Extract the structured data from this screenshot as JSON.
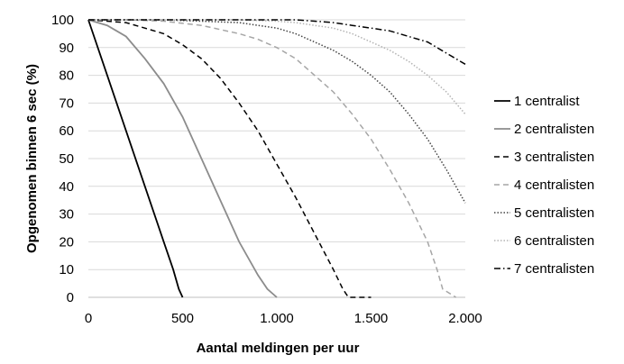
{
  "chart_data": {
    "type": "line",
    "title": "",
    "xlabel": "Aantal meldingen per uur",
    "ylabel": "Opgenomen binnen 6 sec (%)",
    "xlim": [
      0,
      2000
    ],
    "ylim": [
      0,
      100
    ],
    "x_ticks": [
      0,
      500,
      1000,
      1500,
      2000
    ],
    "x_tick_labels": [
      "0",
      "500",
      "1.000",
      "1.500",
      "2.000"
    ],
    "y_ticks": [
      0,
      10,
      20,
      30,
      40,
      50,
      60,
      70,
      80,
      90,
      100
    ],
    "y_tick_labels": [
      "0",
      "10",
      "20",
      "30",
      "40",
      "50",
      "60",
      "70",
      "80",
      "90",
      "100"
    ],
    "grid": "horizontal",
    "legend_position": "right",
    "series": [
      {
        "name": "1 centralist",
        "color": "#000000",
        "dash": "solid",
        "x": [
          0,
          100,
          200,
          300,
          400,
          450,
          480,
          500
        ],
        "y": [
          100,
          80,
          60,
          40,
          20,
          10,
          3,
          0
        ]
      },
      {
        "name": "2 centralisten",
        "color": "#8c8c8c",
        "dash": "solid",
        "x": [
          0,
          100,
          200,
          300,
          400,
          500,
          600,
          700,
          800,
          900,
          950,
          1000
        ],
        "y": [
          100,
          98,
          94,
          86,
          77,
          65,
          50,
          35,
          20,
          8,
          3,
          0
        ]
      },
      {
        "name": "3 centralisten",
        "color": "#000000",
        "dash": "dashed",
        "x": [
          0,
          100,
          200,
          300,
          400,
          500,
          600,
          700,
          800,
          900,
          1000,
          1100,
          1200,
          1300,
          1350,
          1380,
          1400,
          1500
        ],
        "y": [
          100,
          99.5,
          99,
          97,
          95,
          91,
          86,
          79,
          70,
          60,
          48,
          36,
          23,
          10,
          3,
          0,
          0,
          0
        ]
      },
      {
        "name": "4 centralisten",
        "color": "#a6a6a6",
        "dash": "dashed",
        "x": [
          0,
          200,
          400,
          600,
          800,
          900,
          1000,
          1100,
          1200,
          1300,
          1400,
          1500,
          1600,
          1700,
          1800,
          1850,
          1880,
          1950
        ],
        "y": [
          100,
          100,
          99.5,
          98,
          95,
          93,
          90,
          86,
          80,
          74,
          66,
          57,
          46,
          34,
          20,
          10,
          3,
          0
        ]
      },
      {
        "name": "5 centralisten",
        "color": "#444444",
        "dash": "dotted",
        "x": [
          0,
          200,
          400,
          600,
          800,
          1000,
          1100,
          1200,
          1300,
          1400,
          1500,
          1600,
          1700,
          1800,
          1900,
          2000
        ],
        "y": [
          100,
          100,
          100,
          99.5,
          99,
          97,
          95,
          92,
          89,
          85,
          80,
          74,
          66,
          57,
          46,
          34
        ]
      },
      {
        "name": "6 centralisten",
        "color": "#b3b3b3",
        "dash": "dotted",
        "x": [
          0,
          400,
          800,
          1000,
          1100,
          1200,
          1300,
          1400,
          1500,
          1600,
          1700,
          1800,
          1900,
          2000
        ],
        "y": [
          100,
          100,
          100,
          99.5,
          99,
          98,
          97,
          95,
          92,
          89,
          85,
          80,
          74,
          66
        ]
      },
      {
        "name": "7 centralisten",
        "color": "#000000",
        "dash": "dashdot",
        "x": [
          0,
          400,
          800,
          1100,
          1200,
          1300,
          1400,
          1500,
          1600,
          1700,
          1800,
          1900,
          2000
        ],
        "y": [
          100,
          100,
          100,
          100,
          99.5,
          99,
          98,
          97,
          96,
          94,
          92,
          88,
          84
        ]
      }
    ]
  }
}
